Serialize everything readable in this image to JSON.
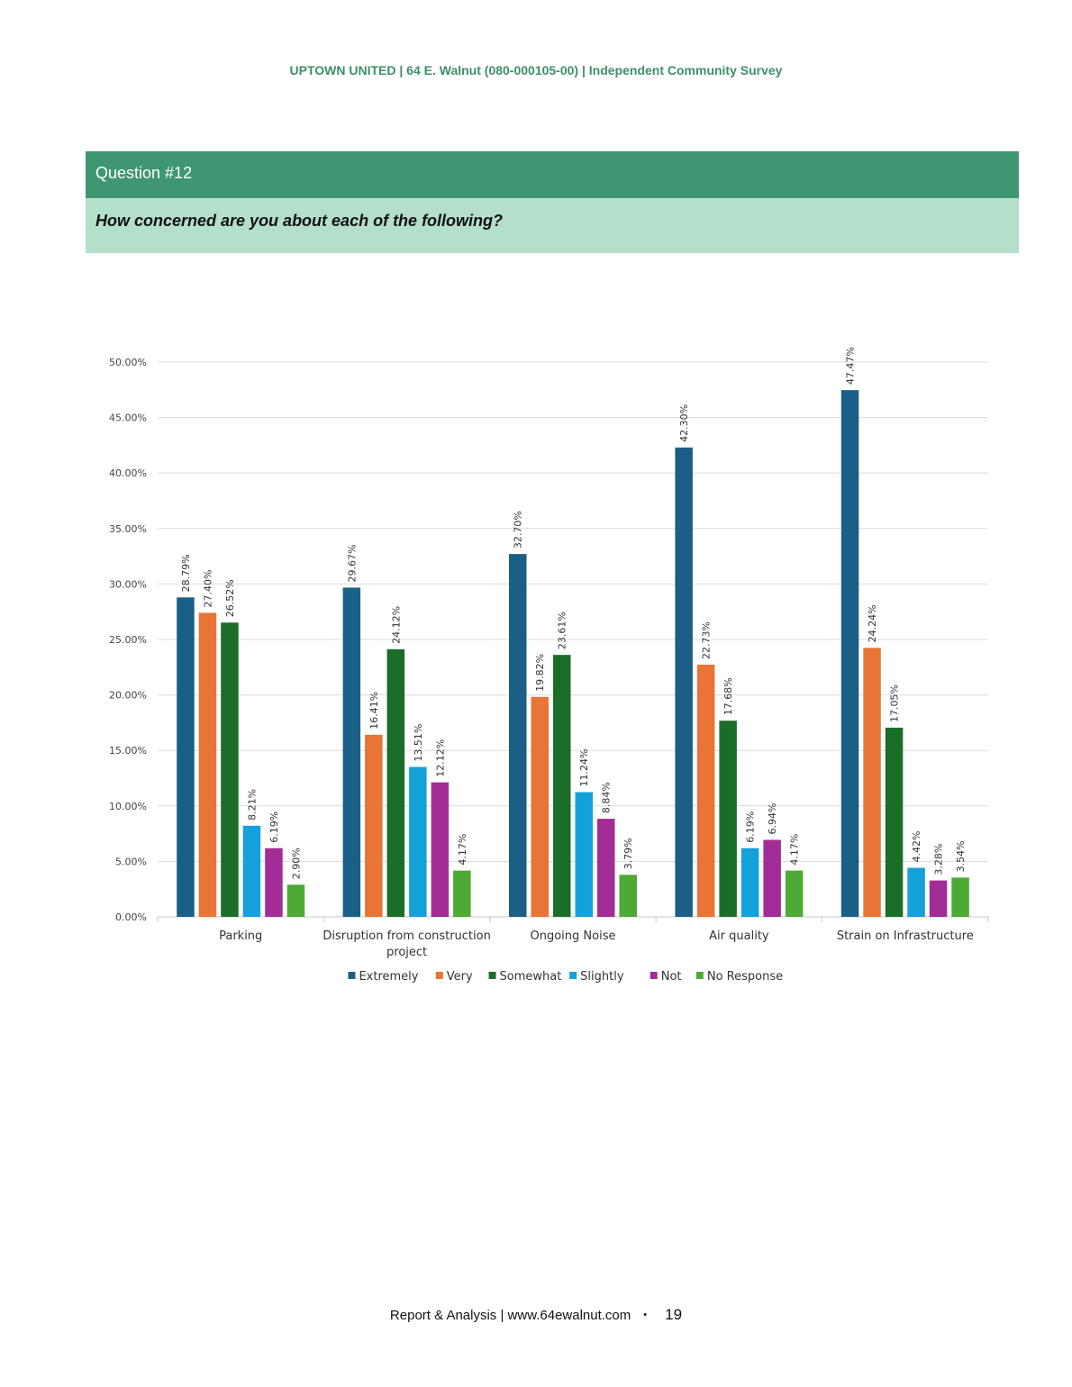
{
  "header": {
    "title": "UPTOWN UNITED | 64 E. Walnut (080-000105-00) | Independent Community Survey"
  },
  "question": {
    "number_label": "Question #12",
    "text": "How concerned are you about each of the following?"
  },
  "footer": {
    "text": "Report & Analysis | www.64ewalnut.com",
    "separator": "•",
    "page": "19"
  },
  "chart_data": {
    "type": "bar",
    "title": "",
    "xlabel": "",
    "ylabel": "",
    "ylim": [
      0,
      50
    ],
    "yticks": [
      "0.00%",
      "5.00%",
      "10.00%",
      "15.00%",
      "20.00%",
      "25.00%",
      "30.00%",
      "35.00%",
      "40.00%",
      "45.00%",
      "50.00%"
    ],
    "grid": true,
    "legend_position": "bottom",
    "categories": [
      [
        "Parking"
      ],
      [
        "Disruption from construction",
        "project"
      ],
      [
        "Ongoing Noise"
      ],
      [
        "Air quality"
      ],
      [
        "Strain on Infrastructure"
      ]
    ],
    "series": [
      {
        "name": "Extremely",
        "color": "#1a5f85",
        "values": [
          28.79,
          29.67,
          32.7,
          42.3,
          47.47
        ],
        "labels": [
          "28.79%",
          "29.67%",
          "32.70%",
          "42.30%",
          "47.47%"
        ]
      },
      {
        "name": "Very",
        "color": "#e87535",
        "values": [
          27.4,
          16.41,
          19.82,
          22.73,
          24.24
        ],
        "labels": [
          "27.40%",
          "16.41%",
          "19.82%",
          "22.73%",
          "24.24%"
        ]
      },
      {
        "name": "Somewhat",
        "color": "#1b6d2a",
        "values": [
          26.52,
          24.12,
          23.61,
          17.68,
          17.05
        ],
        "labels": [
          "26.52%",
          "24.12%",
          "23.61%",
          "17.68%",
          "17.05%"
        ]
      },
      {
        "name": "Slightly",
        "color": "#14a0d9",
        "values": [
          8.21,
          13.51,
          11.24,
          6.19,
          4.42
        ],
        "labels": [
          "8.21%",
          "13.51%",
          "11.24%",
          "6.19%",
          "4.42%"
        ]
      },
      {
        "name": "Not",
        "color": "#a22d96",
        "values": [
          6.19,
          12.12,
          8.84,
          6.94,
          3.28
        ],
        "labels": [
          "6.19%",
          "12.12%",
          "8.84%",
          "6.94%",
          "3.28%"
        ]
      },
      {
        "name": "No Response",
        "color": "#4daa35",
        "values": [
          2.9,
          4.17,
          3.79,
          4.17,
          3.54
        ],
        "labels": [
          "2.90%",
          "4.17%",
          "3.79%",
          "4.17%",
          "3.54%"
        ]
      }
    ]
  }
}
